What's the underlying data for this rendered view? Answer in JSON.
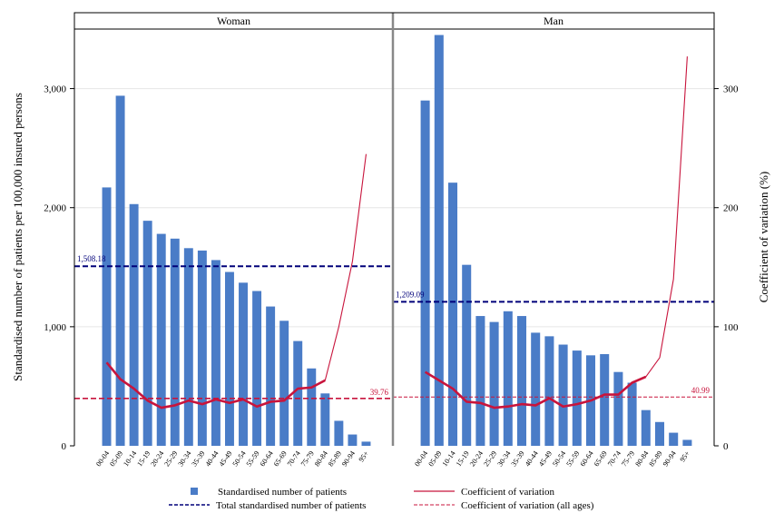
{
  "chart_data": {
    "type": "bar",
    "ylabel": "Standardised number of patients per 100,000 insured persons",
    "y2label": "Coefficient of variation (%)",
    "ylim": [
      0,
      3500
    ],
    "y2lim": [
      0,
      350
    ],
    "yticks": [
      0,
      1000,
      2000,
      3000
    ],
    "yticklabels": [
      "0",
      "1,000",
      "2,000",
      "3,000"
    ],
    "y2ticks": [
      0,
      100,
      200,
      300
    ],
    "y2ticklabels": [
      "0",
      "100",
      "200",
      "300"
    ],
    "grid": true,
    "legend_position": "bottom",
    "categories": [
      "00-04",
      "05-09",
      "10-14",
      "15-19",
      "20-24",
      "25-29",
      "30-34",
      "35-39",
      "40-44",
      "45-49",
      "50-54",
      "55-59",
      "60-64",
      "65-69",
      "70-74",
      "75-79",
      "80-84",
      "85-89",
      "90-94",
      "95+"
    ],
    "legend": [
      {
        "label": "Standardised number of patients",
        "kind": "bar"
      },
      {
        "label": "Coefficient of variation",
        "kind": "line"
      },
      {
        "label": "Total standardised number of patients",
        "kind": "navy-dash"
      },
      {
        "label": "Coefficient of variation (all ages)",
        "kind": "red-dash"
      }
    ],
    "panels": [
      {
        "title": "Woman",
        "patients": [
          2170,
          2940,
          2030,
          1890,
          1780,
          1740,
          1660,
          1640,
          1560,
          1460,
          1370,
          1300,
          1170,
          1050,
          880,
          650,
          440,
          210,
          95,
          35
        ],
        "cv": [
          70,
          56,
          48,
          38,
          32,
          34,
          38,
          35,
          39,
          36,
          39,
          33,
          37,
          38,
          48,
          49,
          55,
          100,
          155,
          245
        ],
        "total": 1508.18,
        "total_label": "1,508.18",
        "cv_all": 39.76,
        "cv_all_label": "39.76"
      },
      {
        "title": "Man",
        "patients": [
          2900,
          3450,
          2210,
          1520,
          1090,
          1040,
          1130,
          1090,
          950,
          920,
          850,
          800,
          760,
          770,
          620,
          530,
          300,
          200,
          110,
          50
        ],
        "cv": [
          62,
          55,
          48,
          37,
          36,
          32,
          33,
          35,
          34,
          40,
          33,
          35,
          38,
          43,
          43,
          53,
          58,
          74,
          140,
          327
        ],
        "total": 1209.09,
        "total_label": "1,209.09",
        "cv_all": 40.99,
        "cv_all_label": "40.99"
      }
    ],
    "colors": {
      "bar": "#4a7cc7",
      "cv_line": "#c8143c",
      "total_line": "#00007a",
      "cv_all_line": "#c8143c",
      "divider": "#888888"
    }
  }
}
